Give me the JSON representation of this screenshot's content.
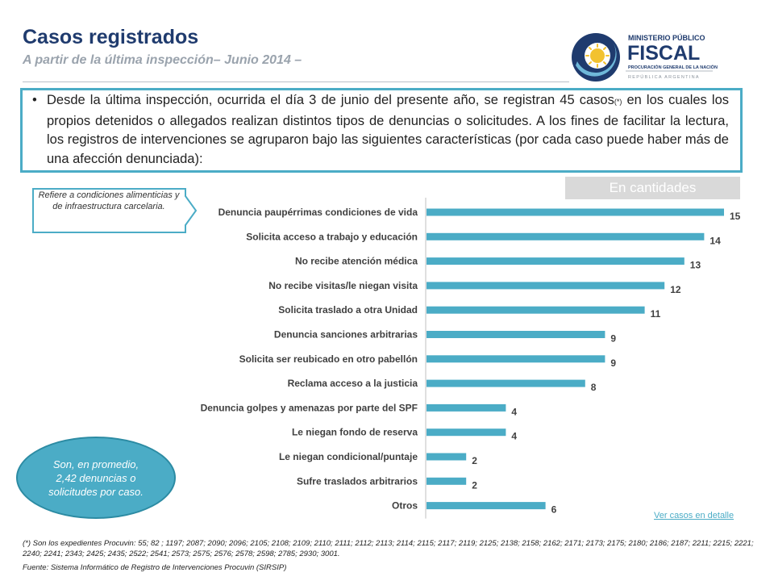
{
  "header": {
    "title": "Casos registrados",
    "subtitle": "A partir de la última inspección– Junio 2014 –"
  },
  "logo": {
    "line1": "MINISTERIO PÚBLICO",
    "line2": "FISCAL",
    "line3": "PROCURACIÓN GENERAL DE LA NACIÓN",
    "line4": "REPÚBLICA ARGENTINA",
    "icon": "argentina-sun-emblem"
  },
  "intro": {
    "bullet": "•",
    "text_before": "Desde la última inspección, ocurrida el día 3 de junio del presente año, se registran 45 casos",
    "superscript": "(*)",
    "text_after": " en los cuales los propios detenidos o allegados realizan distintos tipos de denuncias o solicitudes. A los fines de facilitar la lectura, los registros de intervenciones se agruparon bajo las siguientes características (por cada caso puede haber más de una afección denunciada):"
  },
  "badge": "En cantidades",
  "callout": "Refiere a condiciones alimenticias y de infraestructura carcelaria.",
  "average_note": "Son, en promedio, 2,42 denuncias o solicitudes por caso.",
  "link": "Ver casos en detalle",
  "footnote": "(*) Son los expedientes Procuvin: 55; 82 ; 1197; 2087; 2090; 2096; 2105; 2108; 2109; 2110; 2111; 2112; 2113; 2114; 2115; 2117; 2119; 2125; 2138; 2158; 2162; 2171; 2173; 2175; 2180; 2186; 2187; 2211; 2215; 2221; 2240; 2241; 2343; 2425; 2435; 2522; 2541; 2573; 2575; 2576; 2578; 2598; 2785; 2930; 3001.",
  "source": "Fuente: Sistema Informático de Registro de Intervenciones Procuvin (SIRSIP)",
  "colors": {
    "accent": "#4bacc6",
    "title": "#1f3b6e"
  },
  "chart_data": {
    "type": "bar",
    "orientation": "horizontal",
    "categories": [
      "Denuncia paupérrimas condiciones de vida",
      "Solicita acceso a trabajo y educación",
      "No recibe atención médica",
      "No recibe visitas/le niegan visita",
      "Solicita traslado a otra Unidad",
      "Denuncia sanciones arbitrarias",
      "Solicita ser reubicado en otro pabellón",
      "Reclama acceso a la justicia",
      "Denuncia golpes y amenazas por parte del SPF",
      "Le niegan fondo de reserva",
      "Le niegan condicional/puntaje",
      "Sufre traslados arbitrarios",
      "Otros"
    ],
    "values": [
      15,
      14,
      13,
      12,
      11,
      9,
      9,
      8,
      4,
      4,
      2,
      2,
      6
    ],
    "xlim": [
      0,
      15
    ],
    "grid": false,
    "bar_color": "#4bacc6"
  }
}
